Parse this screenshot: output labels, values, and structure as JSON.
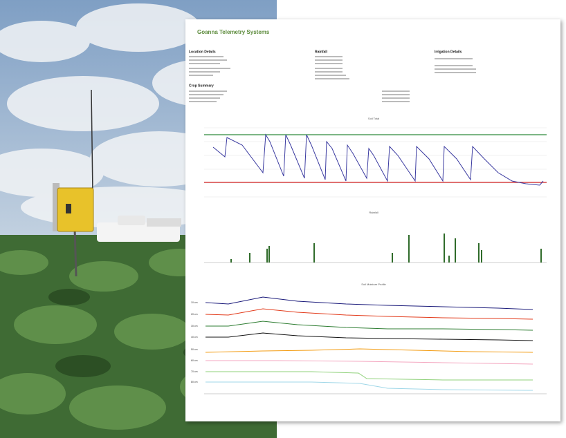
{
  "header": {
    "logo": "Goanna Telemetry Systems",
    "sections": [
      "Location Details",
      "Rainfall",
      "Irrigation Details"
    ],
    "crop_summary": "Crop Summary"
  },
  "charts": [
    {
      "title": "Soil Total"
    },
    {
      "title": "Rainfall"
    },
    {
      "title": "Soil Moisture Profile",
      "depth_labels": [
        "10 cm",
        "20 cm",
        "30 cm",
        "40 cm",
        "50 cm",
        "60 cm",
        "70 cm",
        "80 cm"
      ]
    }
  ]
}
